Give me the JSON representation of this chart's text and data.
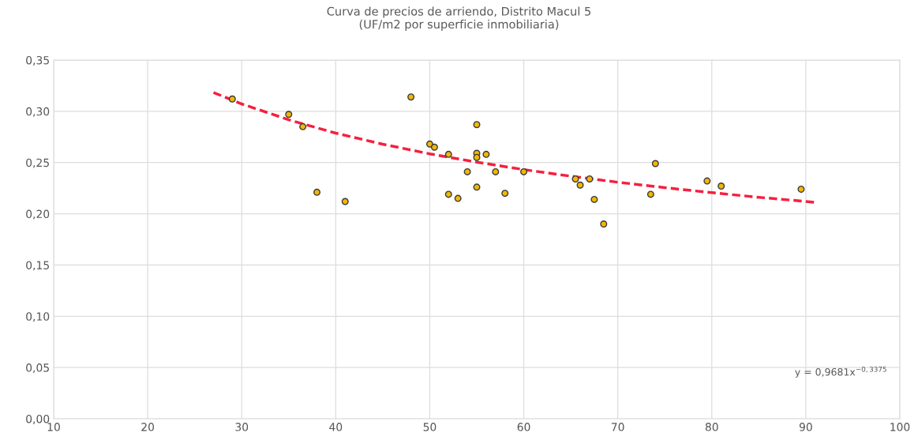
{
  "chart_data": {
    "type": "scatter",
    "title": "Curva de precios de arriendo, Distrito Macul 5\n(UF/m2 por superficie inmobiliaria)",
    "annotations": [
      "y = 0,9681x$^{−0,3375}$"
    ],
    "series": [
      {
        "color": "#f2b705",
        "marker": "circle",
        "x": [
          29,
          35,
          36.5,
          38,
          41,
          48,
          50,
          50.5,
          52,
          52,
          53,
          54,
          55,
          55,
          55,
          55,
          56,
          57,
          58,
          60,
          65.5,
          66,
          67,
          67.5,
          68.5,
          73.5,
          74,
          79.5,
          81,
          89.5
        ],
        "values": [
          0.312,
          0.297,
          0.285,
          0.221,
          0.212,
          0.314,
          0.268,
          0.265,
          0.258,
          0.219,
          0.215,
          0.241,
          0.287,
          0.259,
          0.255,
          0.226,
          0.258,
          0.241,
          0.22,
          0.241,
          0.234,
          0.228,
          0.234,
          0.214,
          0.19,
          0.219,
          0.249,
          0.232,
          0.227,
          0.224
        ]
      },
      {
        "type": "line",
        "color": "#f5203f",
        "line_style": "dashed",
        "marker": "none",
        "x": [
          27,
          30,
          35,
          40,
          45,
          50,
          55,
          60,
          65,
          70,
          75,
          80,
          85,
          91
        ],
        "values": [
          0.3183,
          0.3072,
          0.2917,
          0.2787,
          0.2679,
          0.2585,
          0.2504,
          0.2431,
          0.2367,
          0.2308,
          0.2255,
          0.2206,
          0.2161,
          0.2112
        ]
      }
    ],
    "xlim": [
      10,
      100
    ],
    "xticks": [
      10,
      20,
      30,
      40,
      50,
      60,
      70,
      80,
      90,
      100
    ],
    "ylim": [
      0,
      0.35
    ],
    "yticks": [
      {
        "value": 0,
        "label": "0,00"
      },
      {
        "value": 0.05,
        "label": "0,05"
      },
      {
        "value": 0.1,
        "label": "0,10"
      },
      {
        "value": 0.15,
        "label": "0,15"
      },
      {
        "value": 0.2,
        "label": "0,20"
      },
      {
        "value": 0.25,
        "label": "0,25"
      },
      {
        "value": 0.3,
        "label": "0,30"
      },
      {
        "value": 0.35,
        "label": "0,35"
      }
    ],
    "grid": true
  }
}
